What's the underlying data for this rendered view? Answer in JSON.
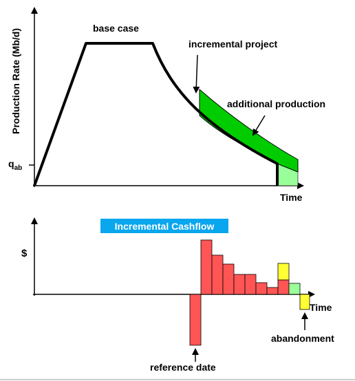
{
  "production": {
    "y_label": "Production Rate (Mb/d)",
    "base_label": "base case",
    "incremental_label": "incremental project",
    "additional_label": "additional production",
    "q_symbol": "q",
    "q_subscript": "ab",
    "x_label": "Time"
  },
  "cashflow": {
    "title": "Incremental Cashflow",
    "y_label": "$",
    "x_label": "Time",
    "abandonment_label": "abandonment",
    "reference_label": "reference date"
  }
}
